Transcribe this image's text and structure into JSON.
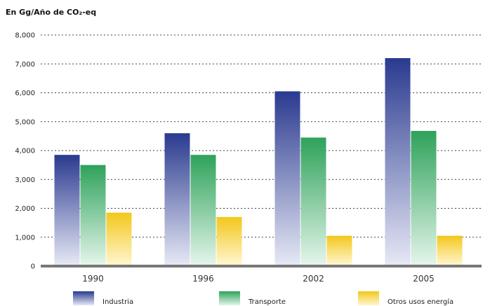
{
  "chart_data": {
    "type": "bar",
    "title": "En Gg/Año de CO₂-eq",
    "categories": [
      "1990",
      "1996",
      "2002",
      "2005"
    ],
    "series": [
      {
        "name": "Industria",
        "values": [
          3850,
          4600,
          6050,
          7200
        ]
      },
      {
        "name": "Transporte",
        "values": [
          3500,
          3850,
          4450,
          4680
        ]
      },
      {
        "name": "Otros usos energía",
        "values": [
          1850,
          1700,
          1050,
          1050
        ]
      }
    ],
    "yticks": [
      "0",
      "1,000",
      "2,000",
      "3,000",
      "4,000",
      "5,000",
      "6,000",
      "7,000",
      "8,000"
    ],
    "ylim": [
      0,
      8000
    ],
    "grid": true,
    "legend_position": "bottom",
    "colors": {
      "Industria": {
        "top": "#2a3a8f",
        "bottom": "#e6e8f5"
      },
      "Transporte": {
        "top": "#2ea25a",
        "bottom": "#e4f5ea"
      },
      "Otros usos energía": {
        "top": "#f3c71b",
        "bottom": "#fff6cf"
      }
    }
  }
}
